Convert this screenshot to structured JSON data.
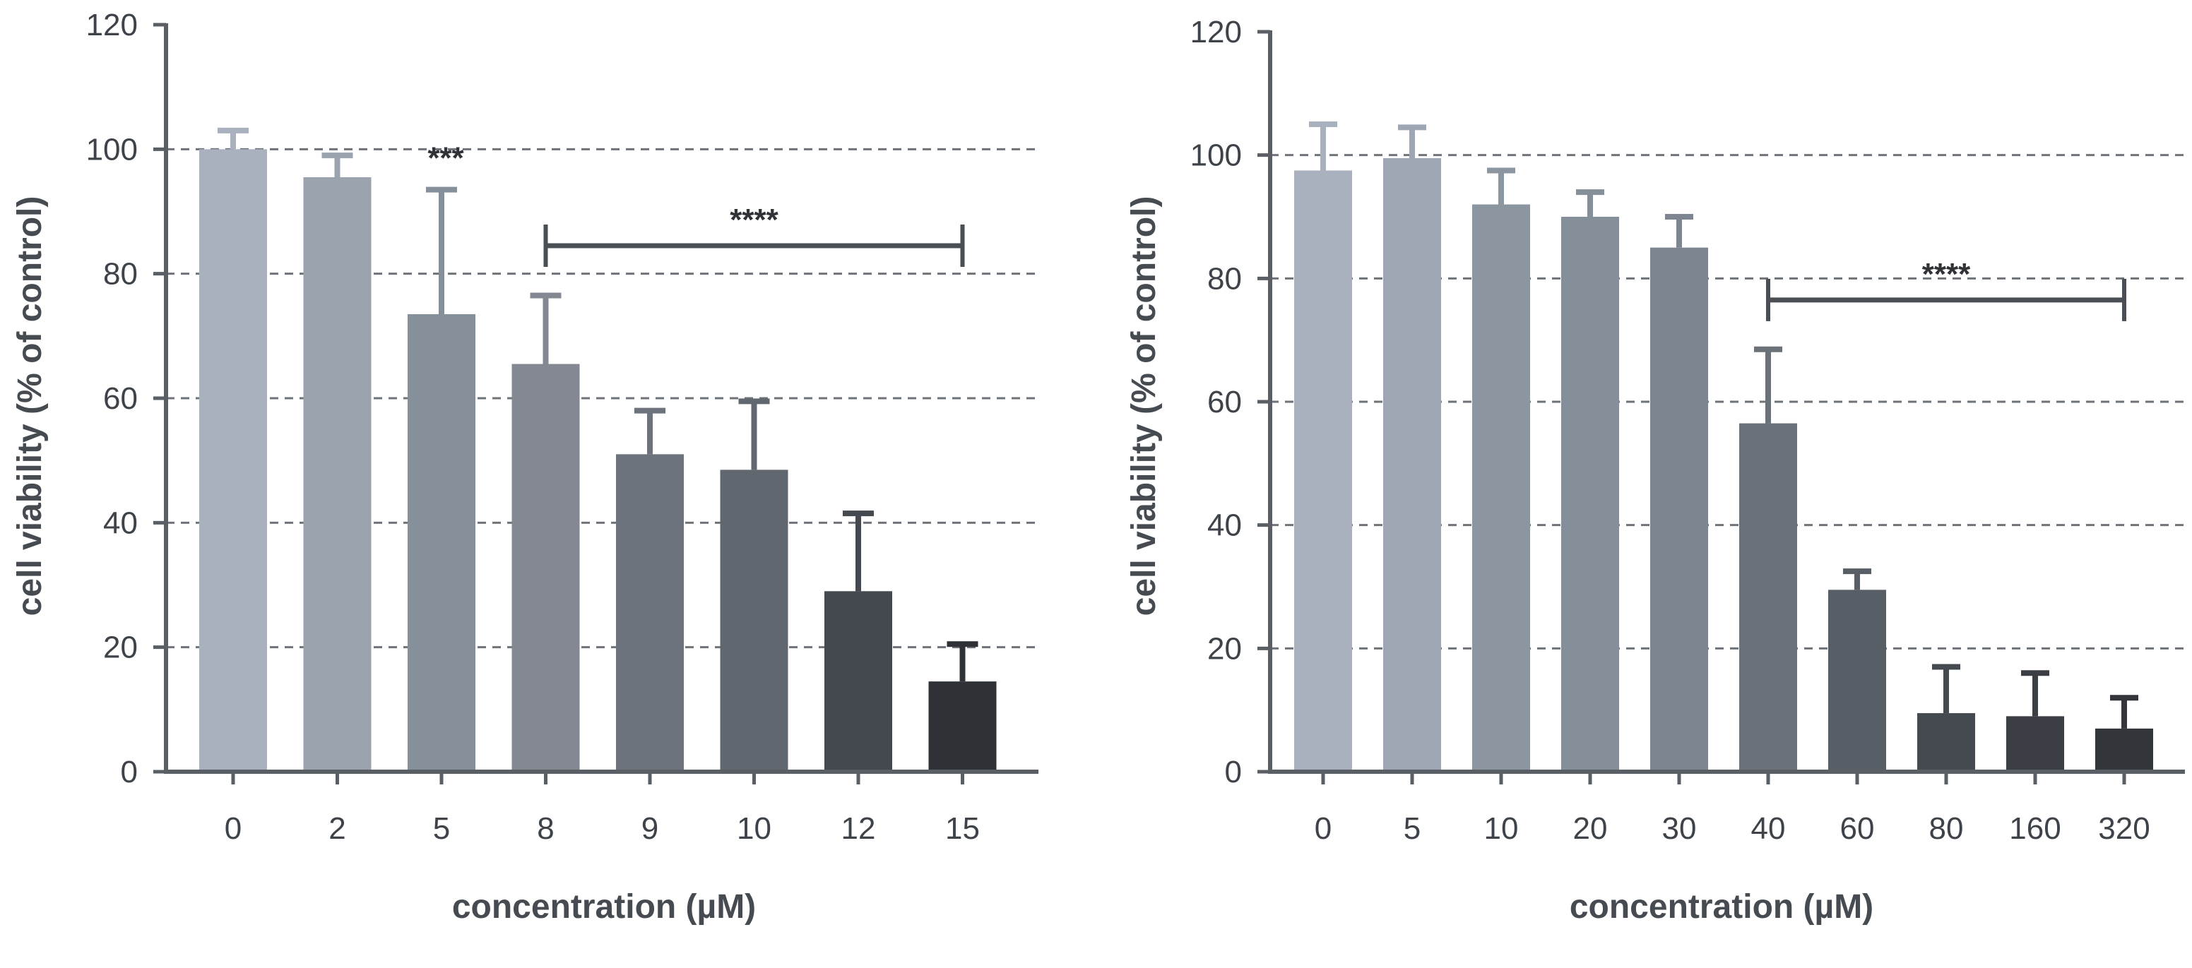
{
  "chart_data": [
    {
      "type": "bar",
      "title": "",
      "xlabel": "concentration (µM)",
      "ylabel": "cell viability (% of control)",
      "ylim": [
        0,
        120
      ],
      "yticks": [
        0,
        20,
        40,
        60,
        80,
        100,
        120
      ],
      "grid": "horizontal dashed",
      "categories": [
        "0",
        "2",
        "5",
        "8",
        "9",
        "10",
        "12",
        "15"
      ],
      "values": [
        100,
        95.5,
        73.5,
        65.5,
        51,
        48.5,
        29,
        14.5
      ],
      "errors": [
        3,
        3.5,
        20,
        11,
        7,
        11,
        12.5,
        6
      ],
      "bar_colors": [
        "#a8b1bd",
        "#9aa3ae",
        "#86909b",
        "#838892",
        "#6c737c",
        "#60676f",
        "#44484f",
        "#2e3236"
      ],
      "annotations": [
        {
          "text": "***",
          "category": "5"
        },
        {
          "text": "****",
          "from": "8",
          "to": "15"
        }
      ]
    },
    {
      "type": "bar",
      "title": "",
      "xlabel": "concentration (µM)",
      "ylabel": "cell viability (% of control)",
      "ylim": [
        0,
        120
      ],
      "yticks": [
        0,
        20,
        40,
        60,
        80,
        100,
        120
      ],
      "grid": "horizontal dashed",
      "categories": [
        "0",
        "5",
        "10",
        "20",
        "30",
        "40",
        "60",
        "80",
        "160",
        "320"
      ],
      "values": [
        97.5,
        99.5,
        92,
        90,
        85,
        56.5,
        29.5,
        9.5,
        9,
        7
      ],
      "errors": [
        7.5,
        5,
        5.5,
        4,
        5,
        12,
        3,
        7.5,
        7,
        5
      ],
      "bar_colors": [
        "#a8b1bd",
        "#9da6b2",
        "#8c96a1",
        "#858f99",
        "#7d8690",
        "#6a7179",
        "#585e66",
        "#454a51",
        "#3b3f45",
        "#32363b"
      ],
      "annotations": [
        {
          "text": "****",
          "from": "40",
          "to": "320"
        }
      ]
    }
  ]
}
